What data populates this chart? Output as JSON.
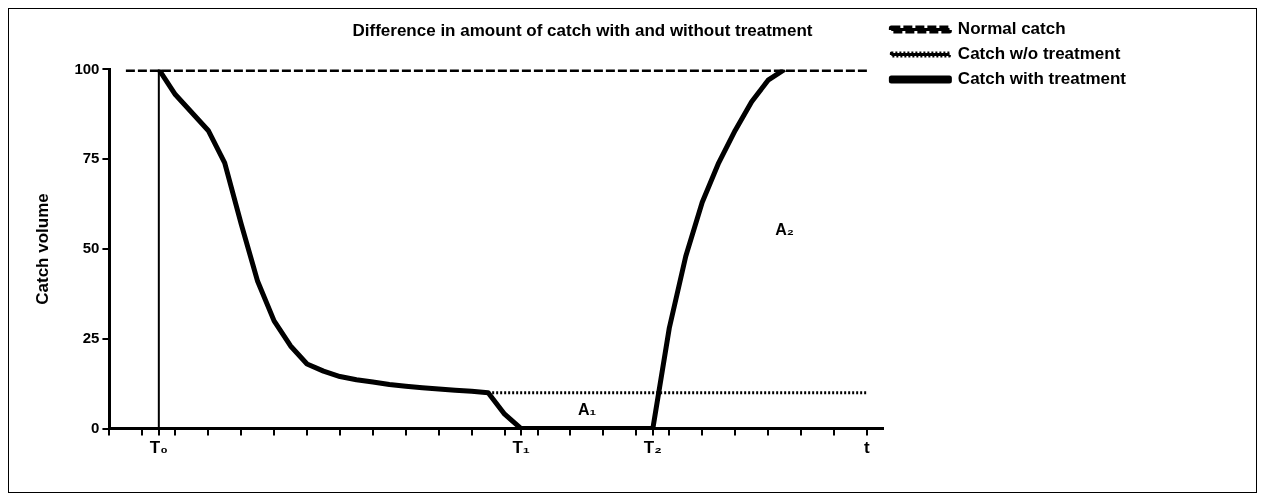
{
  "chart_data": {
    "type": "line",
    "title": "Difference in amount of catch with and without treatment",
    "ylabel": "Catch volume",
    "categories": [
      null,
      null,
      null,
      "T₀",
      null,
      null,
      null,
      null,
      null,
      null,
      null,
      null,
      null,
      null,
      null,
      null,
      null,
      null,
      null,
      null,
      null,
      null,
      null,
      null,
      null,
      "T₁",
      null,
      null,
      null,
      null,
      null,
      null,
      null,
      "T₂",
      null,
      null,
      null,
      null,
      null,
      null,
      null,
      null,
      null,
      null,
      null,
      null,
      "t",
      null
    ],
    "ylim": [
      0,
      100
    ],
    "yticks": [
      0,
      25,
      50,
      75,
      100
    ],
    "grid": false,
    "legend": "right",
    "marker": "none",
    "series": [
      {
        "name": "Normal catch",
        "color": "#000000",
        "line_style": "dashed",
        "values": [
          null,
          100,
          100,
          100,
          100,
          100,
          100,
          100,
          100,
          100,
          100,
          100,
          100,
          100,
          100,
          100,
          100,
          100,
          100,
          100,
          100,
          100,
          100,
          100,
          100,
          100,
          100,
          100,
          100,
          100,
          100,
          100,
          100,
          100,
          100,
          100,
          100,
          100,
          100,
          100,
          100,
          100,
          100,
          100,
          100,
          100,
          100,
          null
        ]
      },
      {
        "name": "Catch w/o treatment",
        "color": "#000000",
        "line_style": "dotted",
        "values": [
          null,
          null,
          null,
          null,
          null,
          null,
          null,
          null,
          null,
          null,
          null,
          null,
          null,
          null,
          null,
          null,
          null,
          null,
          null,
          null,
          null,
          null,
          null,
          10,
          10,
          10,
          10,
          10,
          10,
          10,
          10,
          10,
          10,
          10,
          10,
          10,
          10,
          10,
          10,
          10,
          10,
          10,
          10,
          10,
          10,
          10,
          10,
          null
        ]
      },
      {
        "name": "Catch with treatment",
        "color": "#000000",
        "line_style": "solid",
        "values": [
          null,
          null,
          null,
          100,
          93,
          88,
          83,
          74,
          57,
          41,
          30,
          23,
          18,
          16,
          14.5,
          13.6,
          13,
          12.3,
          11.8,
          11.4,
          11,
          10.7,
          10.4,
          10,
          4,
          0,
          0,
          0,
          0,
          0,
          0,
          0,
          0,
          0,
          28,
          48,
          63,
          74,
          83,
          91,
          97,
          100,
          null,
          null,
          null,
          null,
          null,
          null
        ]
      }
    ],
    "ref_lines": [
      {
        "axis": "x",
        "value": "T₀",
        "color": "#000000",
        "line_style": "solid"
      }
    ],
    "annotations": [
      "A₁",
      "A₂"
    ]
  }
}
